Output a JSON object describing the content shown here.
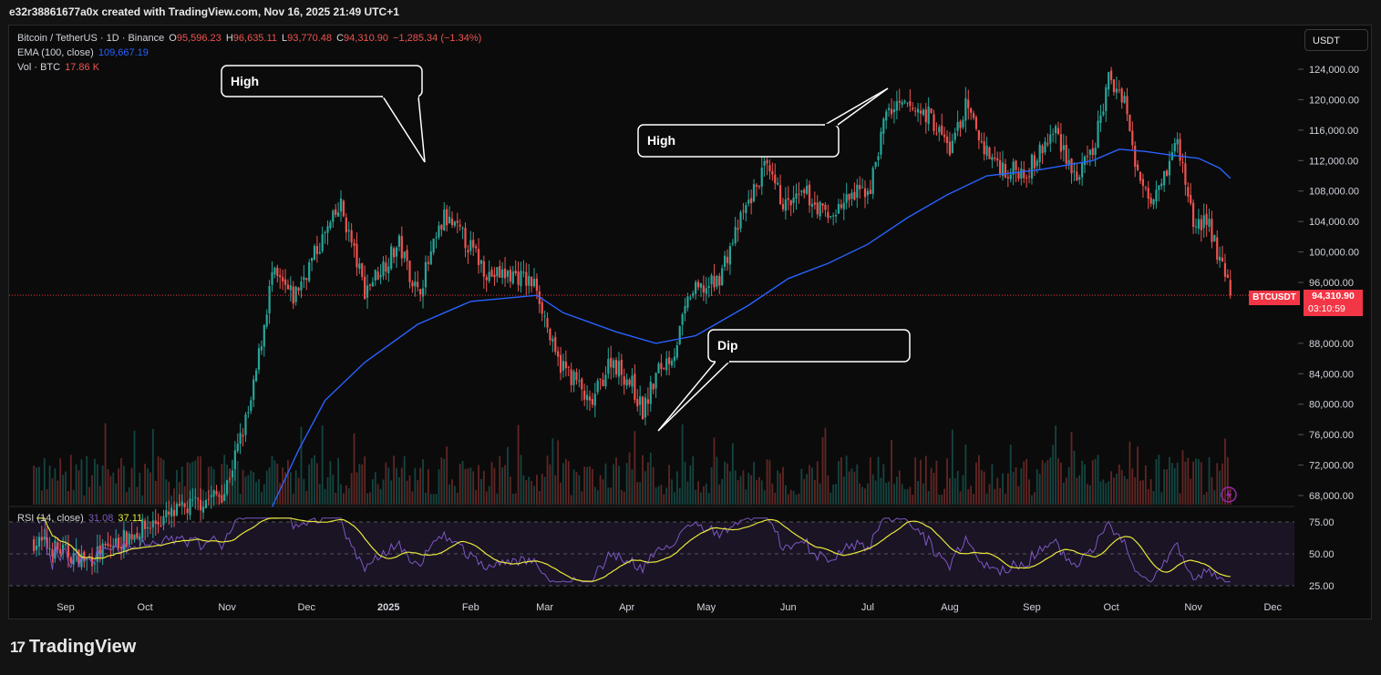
{
  "header": {
    "created_text": "e32r38861677a0x created with TradingView.com, Nov 16, 2025 21:49 UTC+1"
  },
  "legend": {
    "symbol": "Bitcoin / TetherUS · 1D · Binance",
    "o_label": "O",
    "o_value": "95,596.23",
    "h_label": "H",
    "h_value": "96,635.11",
    "l_label": "L",
    "l_value": "93,770.48",
    "c_label": "C",
    "c_value": "94,310.90",
    "change": "−1,285.34 (−1.34%)",
    "ema_label": "EMA (100, close)",
    "ema_value": "109,667.19",
    "vol_label": "Vol · BTC",
    "vol_value": "17.86 K",
    "rsi_label": "RSI (14, close)",
    "rsi_value": "31.08",
    "rsi_ma_value": "37.11"
  },
  "currency_button": "USDT",
  "price_tag": {
    "symbol": "BTCUSDT",
    "price": "94,310.90",
    "countdown": "03:10:59"
  },
  "annotations": [
    {
      "text": "High"
    },
    {
      "text": "High"
    },
    {
      "text": "Dip"
    }
  ],
  "brand": {
    "name": "TradingView",
    "mark": "17"
  },
  "colors": {
    "up": "#26a69a",
    "down": "#ef5350",
    "ema": "#2962ff",
    "rsi": "#7e57c2",
    "rsi_ma": "#e8e83a",
    "price_line": "#f23645",
    "background": "#0b0b0b"
  },
  "chart_data": {
    "type": "candlestick",
    "title": "Bitcoin / TetherUS · 1D · Binance",
    "y_ticks": [
      "124,000.00",
      "120,000.00",
      "116,000.00",
      "112,000.00",
      "108,000.00",
      "104,000.00",
      "100,000.00",
      "96,000.00",
      "88,000.00",
      "84,000.00",
      "80,000.00",
      "76,000.00",
      "72,000.00",
      "68,000.00"
    ],
    "y_tick_values": [
      124000,
      120000,
      116000,
      112000,
      108000,
      104000,
      100000,
      96000,
      88000,
      84000,
      80000,
      76000,
      72000,
      68000
    ],
    "ylim": [
      66500,
      126500
    ],
    "x_ticks": [
      "Sep",
      "Oct",
      "Nov",
      "Dec",
      "2025",
      "Feb",
      "Mar",
      "Apr",
      "May",
      "Jun",
      "Jul",
      "Aug",
      "Sep",
      "Oct",
      "Nov",
      "Dec"
    ],
    "x_tick_day_index": [
      12,
      42,
      73,
      103,
      134,
      165,
      193,
      224,
      254,
      285,
      315,
      346,
      377,
      407,
      438,
      468
    ],
    "series": [
      {
        "name": "EMA (100, close)",
        "last": 109667.19
      },
      {
        "name": "Vol · BTC",
        "last": "17.86 K"
      },
      {
        "name": "RSI (14, close)",
        "last": 31.08,
        "ma": 37.11
      }
    ],
    "rsi_ticks": [
      "75.00",
      "50.00",
      "25.00"
    ],
    "rsi_tick_values": [
      75,
      50,
      25
    ],
    "rsi_ylim": [
      20,
      82
    ],
    "key_points": [
      {
        "d": 0,
        "p": 62000
      },
      {
        "d": 20,
        "p": 59500
      },
      {
        "d": 40,
        "p": 63500
      },
      {
        "d": 62,
        "p": 67000
      },
      {
        "d": 72,
        "p": 68500
      },
      {
        "d": 82,
        "p": 80000
      },
      {
        "d": 90,
        "p": 97000
      },
      {
        "d": 98,
        "p": 94000
      },
      {
        "d": 108,
        "p": 101000
      },
      {
        "d": 116,
        "p": 106000
      },
      {
        "d": 125,
        "p": 95000
      },
      {
        "d": 138,
        "p": 101000
      },
      {
        "d": 145,
        "p": 94500
      },
      {
        "d": 155,
        "p": 104500
      },
      {
        "d": 162,
        "p": 102000
      },
      {
        "d": 172,
        "p": 97000
      },
      {
        "d": 182,
        "p": 97000
      },
      {
        "d": 190,
        "p": 95500
      },
      {
        "d": 197,
        "p": 86000
      },
      {
        "d": 205,
        "p": 83000
      },
      {
        "d": 210,
        "p": 79500
      },
      {
        "d": 218,
        "p": 86000
      },
      {
        "d": 226,
        "p": 82500
      },
      {
        "d": 230,
        "p": 79000
      },
      {
        "d": 236,
        "p": 84500
      },
      {
        "d": 242,
        "p": 87000
      },
      {
        "d": 248,
        "p": 94500
      },
      {
        "d": 258,
        "p": 96000
      },
      {
        "d": 268,
        "p": 105000
      },
      {
        "d": 276,
        "p": 111000
      },
      {
        "d": 284,
        "p": 106000
      },
      {
        "d": 292,
        "p": 107500
      },
      {
        "d": 300,
        "p": 104500
      },
      {
        "d": 308,
        "p": 107000
      },
      {
        "d": 316,
        "p": 108500
      },
      {
        "d": 322,
        "p": 118500
      },
      {
        "d": 330,
        "p": 119000
      },
      {
        "d": 338,
        "p": 118000
      },
      {
        "d": 346,
        "p": 113500
      },
      {
        "d": 352,
        "p": 119000
      },
      {
        "d": 360,
        "p": 113000
      },
      {
        "d": 368,
        "p": 110500
      },
      {
        "d": 376,
        "p": 111000
      },
      {
        "d": 386,
        "p": 116000
      },
      {
        "d": 394,
        "p": 109500
      },
      {
        "d": 400,
        "p": 113000
      },
      {
        "d": 406,
        "p": 122500
      },
      {
        "d": 412,
        "p": 120500
      },
      {
        "d": 416,
        "p": 111000
      },
      {
        "d": 422,
        "p": 107500
      },
      {
        "d": 428,
        "p": 111000
      },
      {
        "d": 432,
        "p": 114500
      },
      {
        "d": 438,
        "p": 104000
      },
      {
        "d": 444,
        "p": 103500
      },
      {
        "d": 452,
        "p": 94310.9
      }
    ],
    "ema_points": [
      {
        "d": 90,
        "p": 66500
      },
      {
        "d": 100,
        "p": 74000
      },
      {
        "d": 110,
        "p": 80500
      },
      {
        "d": 125,
        "p": 85500
      },
      {
        "d": 145,
        "p": 90500
      },
      {
        "d": 165,
        "p": 93500
      },
      {
        "d": 190,
        "p": 94300
      },
      {
        "d": 200,
        "p": 92000
      },
      {
        "d": 220,
        "p": 89500
      },
      {
        "d": 235,
        "p": 88000
      },
      {
        "d": 250,
        "p": 89000
      },
      {
        "d": 270,
        "p": 93000
      },
      {
        "d": 285,
        "p": 96500
      },
      {
        "d": 300,
        "p": 98500
      },
      {
        "d": 315,
        "p": 101000
      },
      {
        "d": 330,
        "p": 104500
      },
      {
        "d": 345,
        "p": 107500
      },
      {
        "d": 360,
        "p": 110000
      },
      {
        "d": 380,
        "p": 110800
      },
      {
        "d": 400,
        "p": 112000
      },
      {
        "d": 410,
        "p": 113500
      },
      {
        "d": 420,
        "p": 113200
      },
      {
        "d": 430,
        "p": 112700
      },
      {
        "d": 440,
        "p": 112300
      },
      {
        "d": 448,
        "p": 111000
      },
      {
        "d": 452,
        "p": 109667.19
      }
    ],
    "annotation_targets": [
      {
        "label": "High",
        "d": 148,
        "p": 112000
      },
      {
        "label": "High",
        "d": 318,
        "p": 121000
      },
      {
        "label": "Dip",
        "d": 229,
        "p": 76500
      }
    ]
  }
}
